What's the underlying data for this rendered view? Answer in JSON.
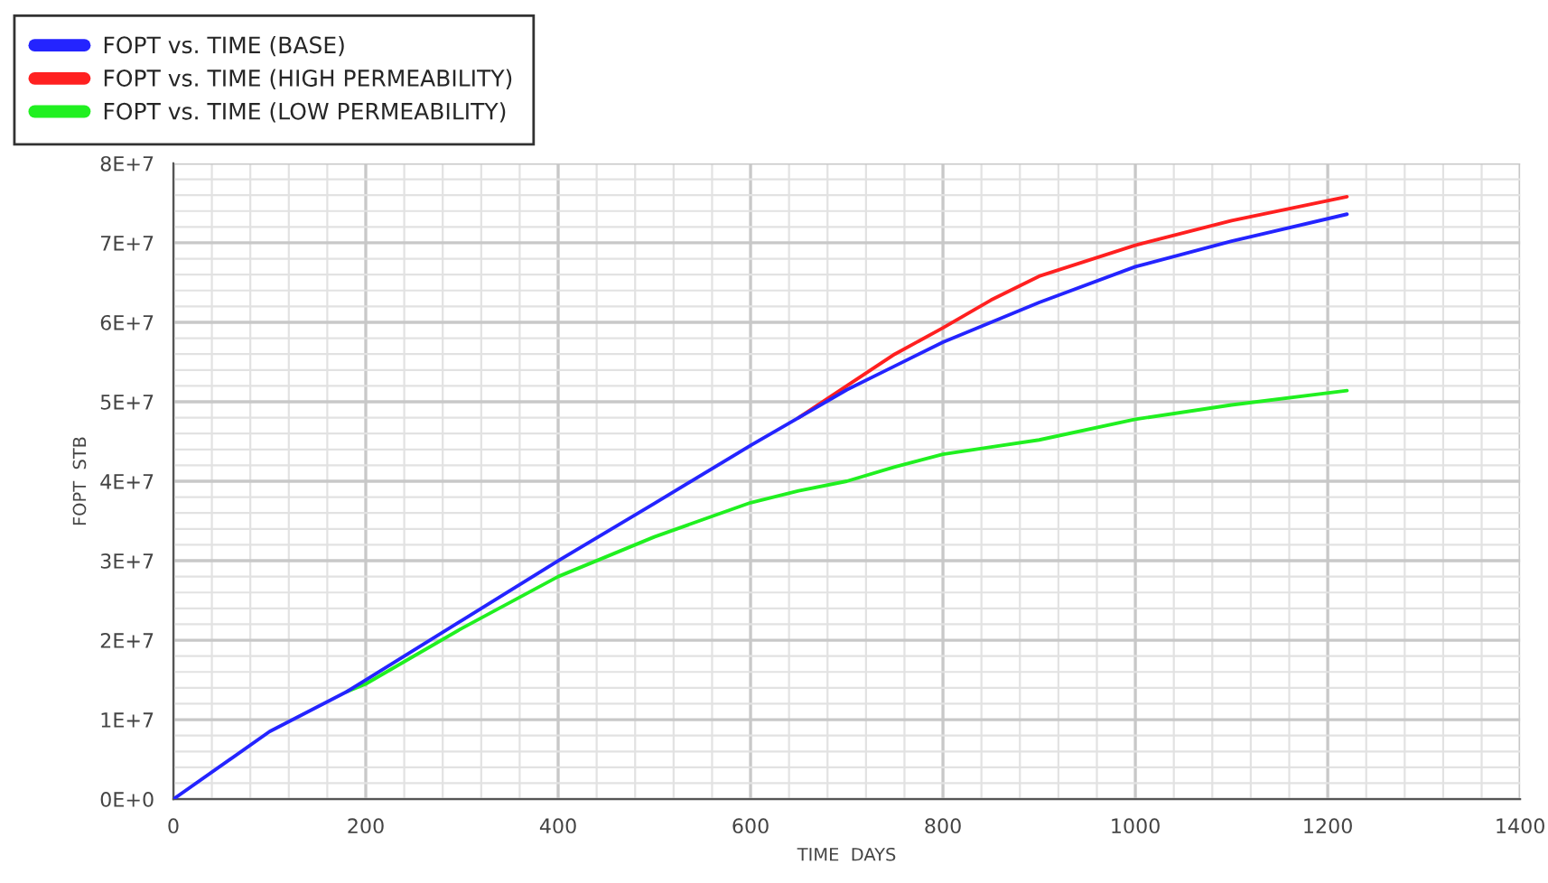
{
  "chart_data": {
    "type": "line",
    "xlabel": "TIME  DAYS",
    "ylabel": "FOPT  STB",
    "x": [
      0,
      100,
      180,
      200,
      300,
      400,
      500,
      600,
      650,
      700,
      750,
      800,
      850,
      900,
      1000,
      1100,
      1220
    ],
    "series": [
      {
        "name": "FOPT vs. TIME (BASE)",
        "color": "#2424ff",
        "values": [
          0,
          8500000,
          13500000,
          15000000,
          22500000,
          30000000,
          37200000,
          44500000,
          48000000,
          51500000,
          54500000,
          57500000,
          60000000,
          62500000,
          67000000,
          70200000,
          73600000
        ]
      },
      {
        "name": "FOPT vs. TIME (HIGH PERMEABILITY)",
        "color": "#ff2020",
        "values": [
          null,
          null,
          null,
          null,
          null,
          null,
          null,
          null,
          48000000,
          52000000,
          56000000,
          59300000,
          62800000,
          65800000,
          69700000,
          72800000,
          75800000
        ]
      },
      {
        "name": "FOPT vs. TIME (LOW PERMEABILITY)",
        "color": "#20f020",
        "values": [
          null,
          null,
          13500000,
          14500000,
          21500000,
          28000000,
          33000000,
          37300000,
          38800000,
          40000000,
          41800000,
          43400000,
          44300000,
          45200000,
          47800000,
          49600000,
          51400000
        ]
      }
    ],
    "xlim": [
      0,
      1400
    ],
    "xticks": [
      0,
      200,
      400,
      600,
      800,
      1000,
      1200,
      1400
    ],
    "ylim": [
      0,
      80000000
    ],
    "yticks": [
      {
        "value": 0,
        "label": "0E+0"
      },
      {
        "value": 10000000,
        "label": "1E+7"
      },
      {
        "value": 20000000,
        "label": "2E+7"
      },
      {
        "value": 30000000,
        "label": "3E+7"
      },
      {
        "value": 40000000,
        "label": "4E+7"
      },
      {
        "value": 50000000,
        "label": "5E+7"
      },
      {
        "value": 60000000,
        "label": "6E+7"
      },
      {
        "value": 70000000,
        "label": "7E+7"
      },
      {
        "value": 80000000,
        "label": "8E+7"
      }
    ],
    "grid": true,
    "legend": "top left",
    "line_style": "solid",
    "marker": "none"
  }
}
